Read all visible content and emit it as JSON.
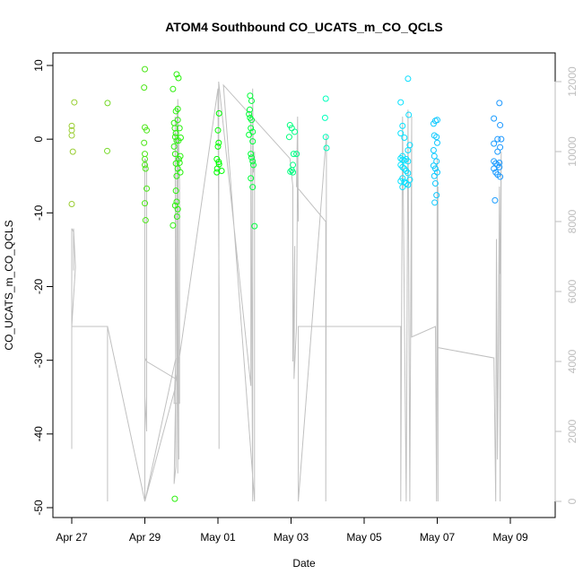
{
  "chart_data": {
    "type": "scatter",
    "title": "ATOM4 Southbound CO_UCATS_m_CO_QCLS",
    "xlabel": "Date",
    "ylabel": "CO_UCATS_m_CO_QCLS",
    "x_unit": "days since Apr 27",
    "xlim": [
      -0.5,
      12.5
    ],
    "ylim": [
      -50,
      10
    ],
    "y2lim": [
      0,
      12000
    ],
    "grid": false,
    "x_ticks": [
      {
        "value": 0,
        "label": "Apr 27"
      },
      {
        "value": 2,
        "label": "Apr 29"
      },
      {
        "value": 4,
        "label": "May 01"
      },
      {
        "value": 6,
        "label": "May 03"
      },
      {
        "value": 8,
        "label": "May 05"
      },
      {
        "value": 10,
        "label": "May 07"
      },
      {
        "value": 12,
        "label": "May 09"
      }
    ],
    "y_ticks": [
      {
        "value": 10,
        "label": "10"
      },
      {
        "value": 0,
        "label": "0"
      },
      {
        "value": -10,
        "label": "-10"
      },
      {
        "value": -20,
        "label": "-20"
      },
      {
        "value": -30,
        "label": "-30"
      },
      {
        "value": -40,
        "label": "-40"
      },
      {
        "value": -50,
        "label": "-50"
      }
    ],
    "y2_ticks": [
      {
        "value": 0,
        "label": "0"
      },
      {
        "value": 2000,
        "label": "2000"
      },
      {
        "value": 4000,
        "label": "4000"
      },
      {
        "value": 6000,
        "label": "6000"
      },
      {
        "value": 8000,
        "label": "8000"
      },
      {
        "value": 10000,
        "label": "10000"
      },
      {
        "value": 12000,
        "label": "12000"
      }
    ],
    "series": [
      {
        "kind": "points",
        "color_scale": [
          "#9acd32",
          "#00ff00",
          "#00ffff",
          "#1e90ff"
        ],
        "points": [
          [
            0.0,
            1.8
          ],
          [
            0.0,
            1.2
          ],
          [
            0.0,
            0.5
          ],
          [
            0.03,
            -1.7
          ],
          [
            0.0,
            -8.8
          ],
          [
            0.07,
            5.0
          ],
          [
            0.98,
            4.9
          ],
          [
            0.97,
            -1.6
          ],
          [
            2.0,
            9.5
          ],
          [
            1.98,
            7.0
          ],
          [
            2.0,
            1.6
          ],
          [
            2.05,
            1.2
          ],
          [
            1.98,
            -0.5
          ],
          [
            2.0,
            -2.0
          ],
          [
            2.0,
            -2.7
          ],
          [
            2.0,
            -3.5
          ],
          [
            2.02,
            -4.0
          ],
          [
            2.05,
            -6.7
          ],
          [
            2.0,
            -8.7
          ],
          [
            2.02,
            -11.0
          ],
          [
            2.77,
            6.8
          ],
          [
            2.8,
            2.2
          ],
          [
            2.82,
            1.5
          ],
          [
            2.85,
            0.8
          ],
          [
            2.83,
            0.3
          ],
          [
            2.87,
            -0.2
          ],
          [
            2.8,
            -1.0
          ],
          [
            2.83,
            -2.0
          ],
          [
            2.85,
            -3.3
          ],
          [
            2.87,
            -5.0
          ],
          [
            2.85,
            -7.0
          ],
          [
            2.87,
            -8.5
          ],
          [
            2.83,
            -9.0
          ],
          [
            2.88,
            -10.5
          ],
          [
            2.77,
            -11.7
          ],
          [
            2.82,
            -48.8
          ],
          [
            2.87,
            8.8
          ],
          [
            2.92,
            8.3
          ],
          [
            2.9,
            4.1
          ],
          [
            2.85,
            3.8
          ],
          [
            2.9,
            2.6
          ],
          [
            2.95,
            1.5
          ],
          [
            2.98,
            0.2
          ],
          [
            2.92,
            -0.2
          ],
          [
            2.93,
            -2.7
          ],
          [
            2.97,
            -2.3
          ],
          [
            2.95,
            -3.2
          ],
          [
            2.9,
            -4.0
          ],
          [
            2.97,
            -4.5
          ],
          [
            2.9,
            -9.5
          ],
          [
            4.03,
            3.5
          ],
          [
            4.0,
            1.2
          ],
          [
            4.02,
            -0.5
          ],
          [
            4.0,
            -1.0
          ],
          [
            3.97,
            -2.7
          ],
          [
            4.02,
            -3.1
          ],
          [
            4.03,
            -3.4
          ],
          [
            3.98,
            -4.0
          ],
          [
            3.97,
            -4.5
          ],
          [
            4.1,
            -4.3
          ],
          [
            4.88,
            5.9
          ],
          [
            4.92,
            5.2
          ],
          [
            4.87,
            4.0
          ],
          [
            4.85,
            3.4
          ],
          [
            4.88,
            2.9
          ],
          [
            4.92,
            2.6
          ],
          [
            4.9,
            1.5
          ],
          [
            4.95,
            1.0
          ],
          [
            4.85,
            0.6
          ],
          [
            4.95,
            -0.3
          ],
          [
            4.9,
            -2.0
          ],
          [
            4.92,
            -2.5
          ],
          [
            4.95,
            -3.0
          ],
          [
            4.97,
            -3.5
          ],
          [
            4.9,
            -5.3
          ],
          [
            4.95,
            -6.5
          ],
          [
            5.0,
            -11.8
          ],
          [
            5.97,
            1.9
          ],
          [
            6.02,
            1.5
          ],
          [
            6.1,
            1.0
          ],
          [
            5.95,
            0.3
          ],
          [
            6.07,
            -2.0
          ],
          [
            6.15,
            -2.0
          ],
          [
            6.05,
            -3.5
          ],
          [
            6.02,
            -4.2
          ],
          [
            6.05,
            -4.5
          ],
          [
            5.98,
            -4.4
          ],
          [
            6.93,
            2.9
          ],
          [
            6.95,
            0.3
          ],
          [
            6.97,
            -1.2
          ],
          [
            6.95,
            5.5
          ],
          [
            9.0,
            5.0
          ],
          [
            9.05,
            1.8
          ],
          [
            9.2,
            8.2
          ],
          [
            9.22,
            3.3
          ],
          [
            9.0,
            0.8
          ],
          [
            9.1,
            0.2
          ],
          [
            9.25,
            -0.8
          ],
          [
            9.2,
            -1.5
          ],
          [
            9.05,
            -2.3
          ],
          [
            9.0,
            -2.6
          ],
          [
            9.05,
            -2.8
          ],
          [
            9.1,
            -2.9
          ],
          [
            9.15,
            -2.7
          ],
          [
            9.2,
            -3.0
          ],
          [
            9.0,
            -3.5
          ],
          [
            9.05,
            -3.8
          ],
          [
            9.1,
            -4.0
          ],
          [
            9.15,
            -4.3
          ],
          [
            9.2,
            -4.6
          ],
          [
            9.05,
            -5.3
          ],
          [
            9.0,
            -5.7
          ],
          [
            9.1,
            -5.8
          ],
          [
            9.15,
            -6.0
          ],
          [
            9.2,
            -6.2
          ],
          [
            9.25,
            -5.5
          ],
          [
            9.05,
            -6.5
          ],
          [
            9.9,
            2.1
          ],
          [
            9.95,
            2.5
          ],
          [
            10.0,
            2.6
          ],
          [
            9.92,
            0.5
          ],
          [
            9.98,
            0.3
          ],
          [
            10.0,
            -0.5
          ],
          [
            9.9,
            -1.5
          ],
          [
            9.92,
            -2.3
          ],
          [
            9.98,
            -3.0
          ],
          [
            9.9,
            -3.6
          ],
          [
            9.95,
            -4.0
          ],
          [
            10.0,
            -4.5
          ],
          [
            9.92,
            -5.0
          ],
          [
            9.95,
            -6.0
          ],
          [
            9.98,
            -7.6
          ],
          [
            9.93,
            -8.6
          ],
          [
            11.55,
            2.8
          ],
          [
            11.7,
            4.9
          ],
          [
            11.72,
            1.9
          ],
          [
            11.75,
            0.0
          ],
          [
            11.65,
            0.0
          ],
          [
            11.55,
            -0.6
          ],
          [
            11.72,
            -1.1
          ],
          [
            11.65,
            -1.7
          ],
          [
            11.55,
            -3.0
          ],
          [
            11.6,
            -3.3
          ],
          [
            11.65,
            -3.5
          ],
          [
            11.7,
            -3.8
          ],
          [
            11.55,
            -4.0
          ],
          [
            11.6,
            -4.5
          ],
          [
            11.65,
            -4.8
          ],
          [
            11.72,
            -5.1
          ],
          [
            11.7,
            -3.2
          ],
          [
            11.58,
            -8.3
          ]
        ]
      },
      {
        "kind": "line",
        "axis": "right",
        "color": "#c0c0c0",
        "points": [
          [
            0.0,
            1500
          ],
          [
            0.0,
            7800
          ],
          [
            0.05,
            7700
          ],
          [
            0.05,
            6600
          ],
          [
            0.05,
            7800
          ],
          [
            0.1,
            6700
          ],
          [
            0.0,
            5000
          ],
          [
            0.0,
            5000
          ],
          [
            0.98,
            5000
          ],
          [
            0.98,
            0
          ],
          [
            0.98,
            5000
          ],
          [
            2.0,
            0
          ],
          [
            2.0,
            9800
          ],
          [
            2.05,
            9700
          ],
          [
            2.05,
            2000
          ],
          [
            2.0,
            3000
          ],
          [
            2.0,
            4100
          ],
          [
            2.05,
            4000
          ],
          [
            2.85,
            3500
          ],
          [
            2.8,
            500
          ],
          [
            2.85,
            1000
          ],
          [
            2.83,
            11000
          ],
          [
            2.9,
            800
          ],
          [
            2.88,
            11200
          ],
          [
            2.93,
            1200
          ],
          [
            2.9,
            11500
          ],
          [
            2.95,
            9000
          ],
          [
            2.95,
            2800
          ],
          [
            2.8,
            2800
          ],
          [
            2.85,
            4100
          ],
          [
            2.0,
            0.1
          ],
          [
            2.82,
            3200
          ],
          [
            4.0,
            11800
          ],
          [
            4.03,
            6000
          ],
          [
            4.03,
            1500
          ],
          [
            4.02,
            12000
          ],
          [
            4.9,
            3300
          ],
          [
            4.9,
            11000
          ],
          [
            4.95,
            0
          ],
          [
            4.95,
            11800
          ],
          [
            4.97,
            9400
          ],
          [
            5.0,
            10000
          ],
          [
            5.0,
            0
          ],
          [
            4.15,
            11900
          ],
          [
            5.97,
            9800
          ],
          [
            6.05,
            9000
          ],
          [
            6.05,
            4000
          ],
          [
            6.1,
            7300
          ],
          [
            6.08,
            3500
          ],
          [
            6.15,
            5000
          ],
          [
            6.18,
            10000
          ],
          [
            6.2,
            8000
          ],
          [
            6.18,
            11000
          ],
          [
            6.15,
            9000
          ],
          [
            6.95,
            8000
          ],
          [
            6.95,
            0
          ],
          [
            6.97,
            10500
          ],
          [
            6.2,
            0
          ],
          [
            6.2,
            5000
          ],
          [
            9.0,
            5000
          ],
          [
            9.0,
            0
          ],
          [
            9.05,
            11000
          ],
          [
            9.1,
            5500
          ],
          [
            9.15,
            0
          ],
          [
            9.2,
            11200
          ],
          [
            9.25,
            0
          ],
          [
            9.3,
            11000
          ],
          [
            9.3,
            4700
          ],
          [
            9.95,
            5000
          ],
          [
            9.98,
            0
          ],
          [
            10.0,
            9800
          ],
          [
            10.02,
            0
          ],
          [
            10.02,
            9000
          ],
          [
            10.0,
            4400
          ],
          [
            11.55,
            4100
          ],
          [
            11.6,
            0
          ],
          [
            11.62,
            7500
          ],
          [
            11.65,
            1200
          ],
          [
            11.7,
            9000
          ],
          [
            11.72,
            0
          ],
          [
            11.75,
            10000
          ],
          [
            11.72,
            6500
          ]
        ]
      }
    ]
  }
}
